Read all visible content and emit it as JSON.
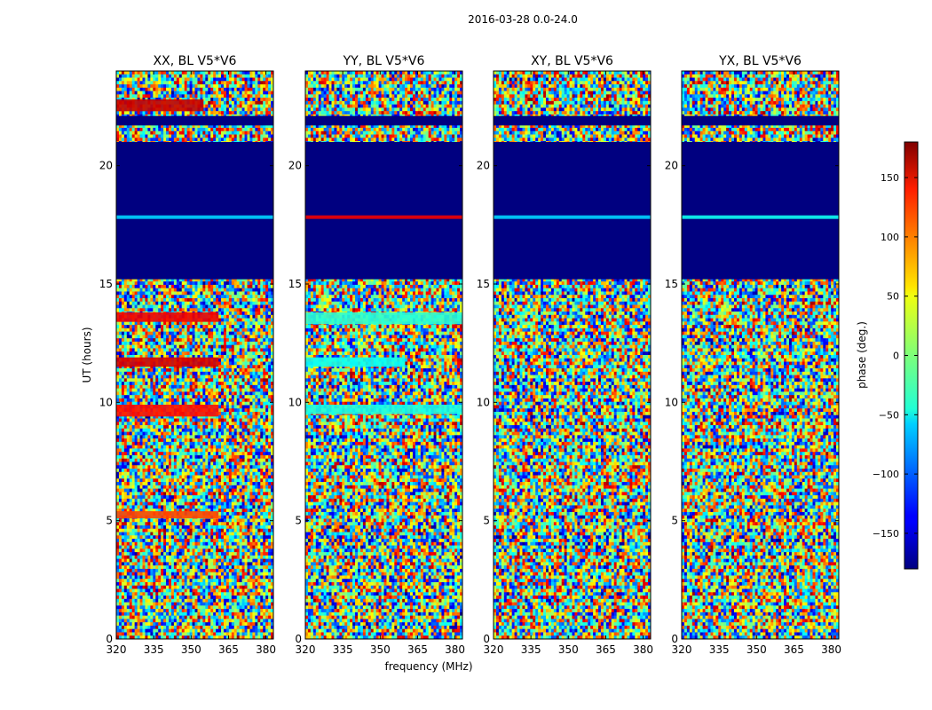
{
  "figure": {
    "suptitle": "2016-03-28 0.0-24.0",
    "shared_xlabel": "frequency (MHz)",
    "shared_ylabel": "UT (hours)"
  },
  "chart_data": {
    "type": "heatmap",
    "colormap": "jet",
    "xlim": [
      320,
      383
    ],
    "ylim": [
      0,
      24
    ],
    "x_ticks": [
      320,
      335,
      350,
      365,
      380
    ],
    "y_ticks": [
      0,
      5,
      10,
      15,
      20
    ],
    "colorbar": {
      "label": "phase (deg.)",
      "range": [
        -180,
        180
      ],
      "ticks": [
        150,
        100,
        50,
        0,
        -50,
        -100,
        -150
      ],
      "tick_labels": [
        "150",
        "100",
        "50",
        "0",
        "−50",
        "−100",
        "−150"
      ]
    },
    "panels": [
      {
        "title": "XX, BL V5*V6",
        "flagged_ut_ranges": [
          [
            15.2,
            21.0
          ],
          [
            21.7,
            22.1
          ]
        ],
        "coherent_bands": [
          {
            "ut_range": [
              13.4,
              13.8
            ],
            "freq_range": [
              320,
              361
            ],
            "phase_deg": 140
          },
          {
            "ut_range": [
              11.5,
              11.9
            ],
            "freq_range": [
              320,
              361
            ],
            "phase_deg": 150
          },
          {
            "ut_range": [
              9.4,
              9.9
            ],
            "freq_range": [
              320,
              361
            ],
            "phase_deg": 130
          },
          {
            "ut_range": [
              5.1,
              5.4
            ],
            "freq_range": [
              320,
              361
            ],
            "phase_deg": 110
          },
          {
            "ut_range": [
              22.3,
              22.8
            ],
            "freq_range": [
              320,
              355
            ],
            "phase_deg": 155
          },
          {
            "ut_range": [
              17.75,
              17.9
            ],
            "freq_range": [
              320,
              383
            ],
            "phase_deg": -60
          }
        ]
      },
      {
        "title": "YY, BL V5*V6",
        "flagged_ut_ranges": [
          [
            15.2,
            21.0
          ],
          [
            21.7,
            22.1
          ]
        ],
        "coherent_bands": [
          {
            "ut_range": [
              13.3,
              13.8
            ],
            "freq_range": [
              320,
              383
            ],
            "phase_deg": -30
          },
          {
            "ut_range": [
              11.5,
              11.9
            ],
            "freq_range": [
              320,
              360
            ],
            "phase_deg": -40
          },
          {
            "ut_range": [
              9.5,
              9.9
            ],
            "freq_range": [
              320,
              383
            ],
            "phase_deg": -35
          },
          {
            "ut_range": [
              17.75,
              17.9
            ],
            "freq_range": [
              320,
              383
            ],
            "phase_deg": 140
          }
        ]
      },
      {
        "title": "XY, BL V5*V6",
        "flagged_ut_ranges": [
          [
            15.2,
            21.0
          ],
          [
            21.7,
            22.1
          ]
        ],
        "coherent_bands": [
          {
            "ut_range": [
              17.75,
              17.9
            ],
            "freq_range": [
              320,
              383
            ],
            "phase_deg": -60
          }
        ]
      },
      {
        "title": "YX, BL V5*V6",
        "flagged_ut_ranges": [
          [
            15.2,
            21.0
          ],
          [
            21.7,
            22.1
          ]
        ],
        "coherent_bands": [
          {
            "ut_range": [
              17.75,
              17.9
            ],
            "freq_range": [
              320,
              383
            ],
            "phase_deg": -40
          }
        ]
      }
    ]
  }
}
